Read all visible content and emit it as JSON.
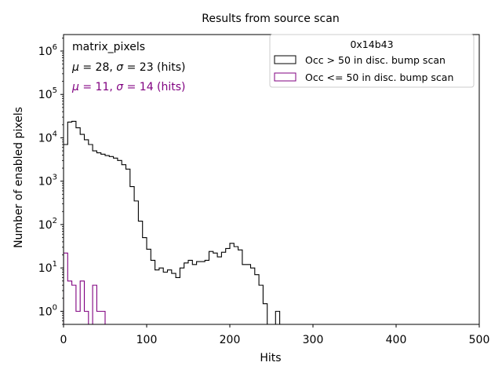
{
  "chart_data": {
    "type": "histogram",
    "title": "Results from source scan",
    "xlabel": "Hits",
    "ylabel": "Number of enabled pixels",
    "xlim": [
      0,
      500
    ],
    "ylim": [
      0.5,
      2400000
    ],
    "yscale": "log",
    "xticks": [
      0,
      100,
      200,
      300,
      400,
      500
    ],
    "xtick_labels": [
      "0",
      "100",
      "200",
      "300",
      "400",
      "500"
    ],
    "yticks": [
      1,
      10,
      100,
      1000,
      10000,
      100000,
      1000000
    ],
    "ytick_labels": [
      {
        "base": "10",
        "exp": "0"
      },
      {
        "base": "10",
        "exp": "1"
      },
      {
        "base": "10",
        "exp": "2"
      },
      {
        "base": "10",
        "exp": "3"
      },
      {
        "base": "10",
        "exp": "4"
      },
      {
        "base": "10",
        "exp": "5"
      },
      {
        "base": "10",
        "exp": "6"
      }
    ],
    "bin_width": 5,
    "annotations": {
      "name": "matrix_pixels",
      "stats_1": {
        "mu_symbol": "μ",
        "mu_value": " = 28, ",
        "sigma_symbol": "σ",
        "sigma_value": " = 23 (hits)",
        "color": "#000000"
      },
      "stats_2": {
        "mu_symbol": "μ",
        "mu_value": " = 11, ",
        "sigma_symbol": "σ",
        "sigma_value": " = 14 (hits)",
        "color": "#800080"
      }
    },
    "legend": {
      "title": "0x14b43",
      "position": "top-right",
      "entries": [
        "Occ > 50 in disc. bump scan",
        "Occ <= 50 in disc. bump scan"
      ]
    },
    "series": [
      {
        "name": "Occ > 50 in disc. bump scan",
        "color": "#000000",
        "bin_start": 0,
        "values": [
          7000,
          23000,
          24000,
          17000,
          12000,
          9000,
          7000,
          5000,
          4500,
          4200,
          3900,
          3700,
          3400,
          3000,
          2400,
          1900,
          750,
          350,
          120,
          50,
          27,
          15,
          9,
          10,
          8,
          9,
          7.5,
          6,
          10,
          13,
          15,
          12,
          14,
          14,
          15,
          24,
          22,
          18,
          23,
          28,
          37,
          31,
          26,
          12,
          12,
          10,
          7,
          4,
          1.5,
          0.3,
          0.3,
          1.0,
          0.3
        ]
      },
      {
        "name": "Occ <= 50 in disc. bump scan",
        "color": "#800080",
        "bin_start": 0,
        "values": [
          22,
          5,
          4,
          1,
          5,
          1,
          0.3,
          4,
          1,
          1,
          0.3
        ]
      }
    ]
  }
}
